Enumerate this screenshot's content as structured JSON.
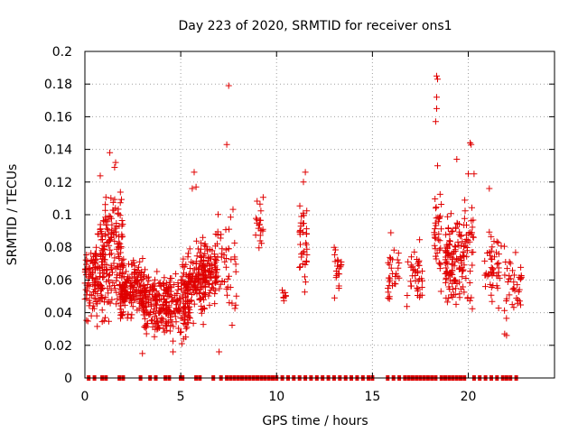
{
  "chart_data": {
    "type": "scatter",
    "title": "Day 223 of 2020, SRMTID for receiver ons1",
    "xlabel": "GPS time / hours",
    "ylabel": "SRMTID / TECUs",
    "xlim": [
      0,
      24.5
    ],
    "ylim": [
      0,
      0.2
    ],
    "xticks": [
      0,
      5,
      10,
      15,
      20
    ],
    "yticks": [
      0,
      0.02,
      0.04,
      0.06,
      0.08,
      0.1,
      0.12,
      0.14,
      0.16,
      0.18,
      0.2
    ],
    "grid": true,
    "marker": "+",
    "color": "#e00000",
    "clusters": [
      {
        "x": [
          0.0,
          1.0
        ],
        "y": [
          0.025,
          0.095
        ],
        "n": 120
      },
      {
        "x": [
          0.8,
          2.0
        ],
        "y": [
          0.025,
          0.13
        ],
        "n": 150
      },
      {
        "x": [
          1.8,
          3.2
        ],
        "y": [
          0.03,
          0.08
        ],
        "n": 180
      },
      {
        "x": [
          3.0,
          4.5
        ],
        "y": [
          0.02,
          0.07
        ],
        "n": 180
      },
      {
        "x": [
          4.5,
          5.5
        ],
        "y": [
          0.015,
          0.07
        ],
        "n": 80
      },
      {
        "x": [
          5.0,
          6.3
        ],
        "y": [
          0.03,
          0.085
        ],
        "n": 120
      },
      {
        "x": [
          5.8,
          6.9
        ],
        "y": [
          0.04,
          0.09
        ],
        "n": 110
      },
      {
        "x": [
          6.8,
          8.0
        ],
        "y": [
          0.03,
          0.12
        ],
        "n": 50
      },
      {
        "x": [
          8.9,
          9.3
        ],
        "y": [
          0.07,
          0.115
        ],
        "n": 20
      },
      {
        "x": [
          10.2,
          10.5
        ],
        "y": [
          0.04,
          0.06
        ],
        "n": 8
      },
      {
        "x": [
          11.2,
          11.6
        ],
        "y": [
          0.04,
          0.125
        ],
        "n": 35
      },
      {
        "x": [
          13.0,
          13.4
        ],
        "y": [
          0.045,
          0.09
        ],
        "n": 20
      },
      {
        "x": [
          15.8,
          16.4
        ],
        "y": [
          0.035,
          0.095
        ],
        "n": 30
      },
      {
        "x": [
          16.8,
          17.6
        ],
        "y": [
          0.035,
          0.09
        ],
        "n": 40
      },
      {
        "x": [
          18.2,
          18.6
        ],
        "y": [
          0.04,
          0.14
        ],
        "n": 35
      },
      {
        "x": [
          18.8,
          19.8
        ],
        "y": [
          0.03,
          0.11
        ],
        "n": 120
      },
      {
        "x": [
          19.8,
          20.3
        ],
        "y": [
          0.035,
          0.125
        ],
        "n": 35
      },
      {
        "x": [
          20.8,
          21.6
        ],
        "y": [
          0.03,
          0.1
        ],
        "n": 45
      },
      {
        "x": [
          21.6,
          22.8
        ],
        "y": [
          0.025,
          0.09
        ],
        "n": 40
      }
    ],
    "outliers": [
      {
        "x": 1.3,
        "y": 0.138
      },
      {
        "x": 1.6,
        "y": 0.132
      },
      {
        "x": 1.55,
        "y": 0.129
      },
      {
        "x": 5.7,
        "y": 0.126
      },
      {
        "x": 5.8,
        "y": 0.117
      },
      {
        "x": 5.6,
        "y": 0.116
      },
      {
        "x": 7.5,
        "y": 0.179
      },
      {
        "x": 7.4,
        "y": 0.143
      },
      {
        "x": 7.0,
        "y": 0.016
      },
      {
        "x": 3.0,
        "y": 0.015
      },
      {
        "x": 4.6,
        "y": 0.016
      },
      {
        "x": 11.5,
        "y": 0.126
      },
      {
        "x": 11.4,
        "y": 0.12
      },
      {
        "x": 18.35,
        "y": 0.185
      },
      {
        "x": 18.4,
        "y": 0.183
      },
      {
        "x": 18.35,
        "y": 0.172
      },
      {
        "x": 18.35,
        "y": 0.165
      },
      {
        "x": 18.3,
        "y": 0.157
      },
      {
        "x": 18.4,
        "y": 0.13
      },
      {
        "x": 20.1,
        "y": 0.144
      },
      {
        "x": 20.15,
        "y": 0.143
      },
      {
        "x": 19.4,
        "y": 0.134
      },
      {
        "x": 20.3,
        "y": 0.125
      },
      {
        "x": 20.0,
        "y": 0.125
      },
      {
        "x": 21.1,
        "y": 0.116
      },
      {
        "x": 22.0,
        "y": 0.026
      },
      {
        "x": 21.9,
        "y": 0.027
      }
    ],
    "zero_series_x": [
      0.2,
      0.5,
      0.9,
      1.1,
      1.8,
      2.0,
      2.9,
      3.4,
      3.7,
      4.2,
      4.4,
      5.0,
      5.1,
      5.8,
      6.0,
      6.7,
      7.1,
      7.4,
      7.6,
      7.8,
      8.0,
      8.2,
      8.4,
      8.6,
      8.8,
      9.0,
      9.2,
      9.4,
      9.6,
      9.8,
      10.0,
      10.3,
      10.6,
      10.9,
      11.2,
      11.5,
      11.8,
      12.1,
      12.4,
      12.7,
      13.0,
      13.3,
      13.6,
      13.9,
      14.2,
      14.5,
      14.8,
      15.0,
      15.8,
      16.1,
      16.4,
      16.7,
      16.9,
      17.1,
      17.3,
      17.5,
      17.7,
      17.9,
      18.1,
      18.3,
      18.6,
      18.8,
      19.0,
      19.2,
      19.4,
      19.6,
      19.8,
      20.3,
      20.6,
      20.9,
      21.2,
      21.5,
      21.8,
      22.0,
      22.2,
      22.5
    ]
  }
}
